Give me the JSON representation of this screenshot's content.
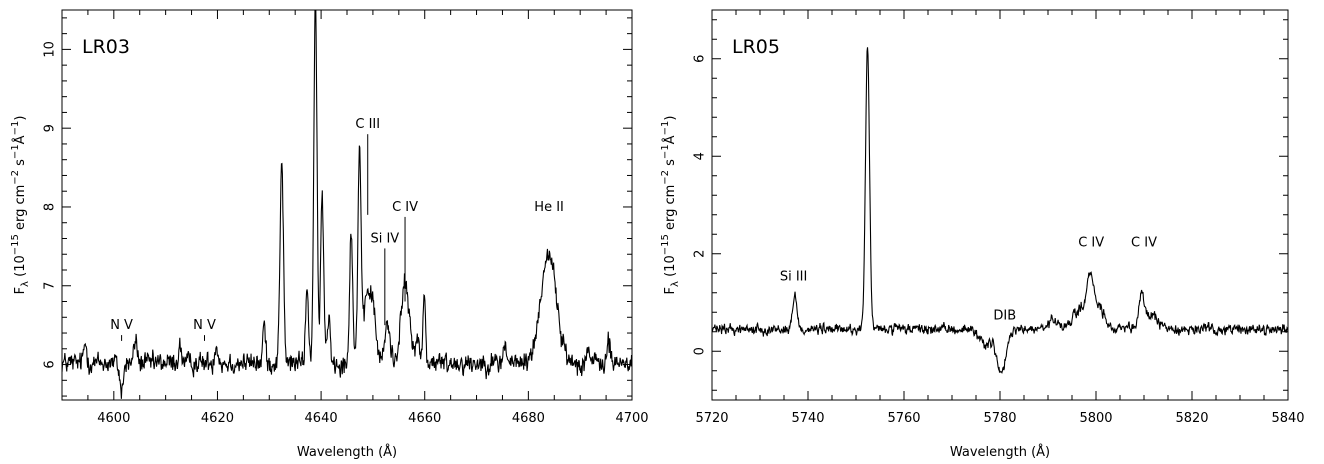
{
  "chart_data": [
    {
      "type": "line",
      "panel_label": "LR03",
      "xlabel": "Wavelength (Å)",
      "ylabel": "F_λ (10^-15 erg cm^-2 s^-1 Å^-1)",
      "ylabel_parts": {
        "base": "F",
        "sub": "λ",
        "open": "(10",
        "exp1": "−15",
        "mid": "erg cm",
        "exp2": "−2",
        "s": "s",
        "exp3": "−1",
        "A": "Å",
        "exp4": "−1",
        "close": ")"
      },
      "xlim": [
        4590,
        4700
      ],
      "ylim": [
        5.55,
        10.5
      ],
      "xticks": [
        4600,
        4620,
        4640,
        4660,
        4680,
        4700
      ],
      "yticks": [
        6,
        7,
        8,
        9,
        10
      ],
      "continuum": 6.02,
      "noise": 0.09,
      "lines": [
        {
          "x": 4601.5,
          "h": -0.35,
          "w": 0.35
        },
        {
          "x": 4604.2,
          "h": 0.3,
          "w": 0.3
        },
        {
          "x": 4594.5,
          "h": 0.25,
          "w": 0.3
        },
        {
          "x": 4612.8,
          "h": 0.2,
          "w": 0.3
        },
        {
          "x": 4619.8,
          "h": 0.25,
          "w": 0.3
        },
        {
          "x": 4629.0,
          "h": 0.5,
          "w": 0.25
        },
        {
          "x": 4632.4,
          "h": 2.6,
          "w": 0.32
        },
        {
          "x": 4637.3,
          "h": 0.9,
          "w": 0.3
        },
        {
          "x": 4638.9,
          "h": 4.6,
          "w": 0.3
        },
        {
          "x": 4640.2,
          "h": 2.1,
          "w": 0.3
        },
        {
          "x": 4641.5,
          "h": 0.6,
          "w": 0.3
        },
        {
          "x": 4645.8,
          "h": 1.7,
          "w": 0.3
        },
        {
          "x": 4647.4,
          "h": 2.7,
          "w": 0.3
        },
        {
          "x": 4649.0,
          "h": 0.9,
          "w": 0.7
        },
        {
          "x": 4650.2,
          "h": 0.5,
          "w": 0.5
        },
        {
          "x": 4652.8,
          "h": 0.5,
          "w": 0.5
        },
        {
          "x": 4656.2,
          "h": 1.0,
          "w": 0.8
        },
        {
          "x": 4658.5,
          "h": 0.3,
          "w": 0.4
        },
        {
          "x": 4659.9,
          "h": 0.85,
          "w": 0.25
        },
        {
          "x": 4683.9,
          "h": 1.4,
          "w": 1.5
        },
        {
          "x": 4675.5,
          "h": 0.25,
          "w": 0.3
        },
        {
          "x": 4691.5,
          "h": 0.2,
          "w": 0.3
        },
        {
          "x": 4695.5,
          "h": 0.25,
          "w": 0.3
        }
      ],
      "annotations": [
        {
          "text": "N  V",
          "x": 4601.5,
          "y": 6.45,
          "tick_bottom": 6.3
        },
        {
          "text": "N  V",
          "x": 4617.5,
          "y": 6.45,
          "tick_bottom": 6.3
        },
        {
          "text": "C  III",
          "x": 4649.0,
          "y": 9.0,
          "tick_bottom": 7.9
        },
        {
          "text": "Si  IV",
          "x": 4652.3,
          "y": 7.55,
          "tick_bottom": 6.5
        },
        {
          "text": "C  IV",
          "x": 4656.2,
          "y": 7.95,
          "tick_bottom": 6.8
        },
        {
          "text": "He  II",
          "x": 4684.0,
          "y": 7.95,
          "tick_bottom": null
        }
      ]
    },
    {
      "type": "line",
      "panel_label": "LR05",
      "xlabel": "Wavelength (Å)",
      "ylabel": "F_λ (10^-15 erg cm^-2 s^-1 Å^-1)",
      "ylabel_parts": {
        "base": "F",
        "sub": "λ",
        "open": "(10",
        "exp1": "−15",
        "mid": "erg cm",
        "exp2": "−2",
        "s": "s",
        "exp3": "−1",
        "A": "Å",
        "exp4": "−1",
        "close": ")"
      },
      "xlim": [
        5720,
        5840
      ],
      "ylim": [
        -1.0,
        7.0
      ],
      "xticks": [
        5720,
        5740,
        5760,
        5780,
        5800,
        5820,
        5840
      ],
      "yticks": [
        0,
        2,
        4,
        6
      ],
      "continuum": 0.45,
      "noise": 0.07,
      "lines": [
        {
          "x": 5737.3,
          "h": 0.7,
          "w": 0.45
        },
        {
          "x": 5752.4,
          "h": 5.75,
          "w": 0.42
        },
        {
          "x": 5780.3,
          "h": -0.9,
          "w": 1.0
        },
        {
          "x": 5777.0,
          "h": -0.3,
          "w": 1.2
        },
        {
          "x": 5796.8,
          "h": 0.4,
          "w": 1.6
        },
        {
          "x": 5798.9,
          "h": 0.95,
          "w": 0.8
        },
        {
          "x": 5801.0,
          "h": 0.4,
          "w": 0.8
        },
        {
          "x": 5809.5,
          "h": 0.7,
          "w": 0.5
        },
        {
          "x": 5811.5,
          "h": 0.3,
          "w": 1.4
        },
        {
          "x": 5791.0,
          "h": 0.2,
          "w": 0.8
        }
      ],
      "annotations": [
        {
          "text": "Si  III",
          "x": 5737.0,
          "y": 1.45,
          "tick_bottom": null
        },
        {
          "text": "DIB",
          "x": 5781.0,
          "y": 0.65,
          "tick_bottom": null
        },
        {
          "text": "C  IV",
          "x": 5799.0,
          "y": 2.15,
          "tick_bottom": null
        },
        {
          "text": "C  IV",
          "x": 5810.0,
          "y": 2.15,
          "tick_bottom": null
        }
      ]
    }
  ]
}
